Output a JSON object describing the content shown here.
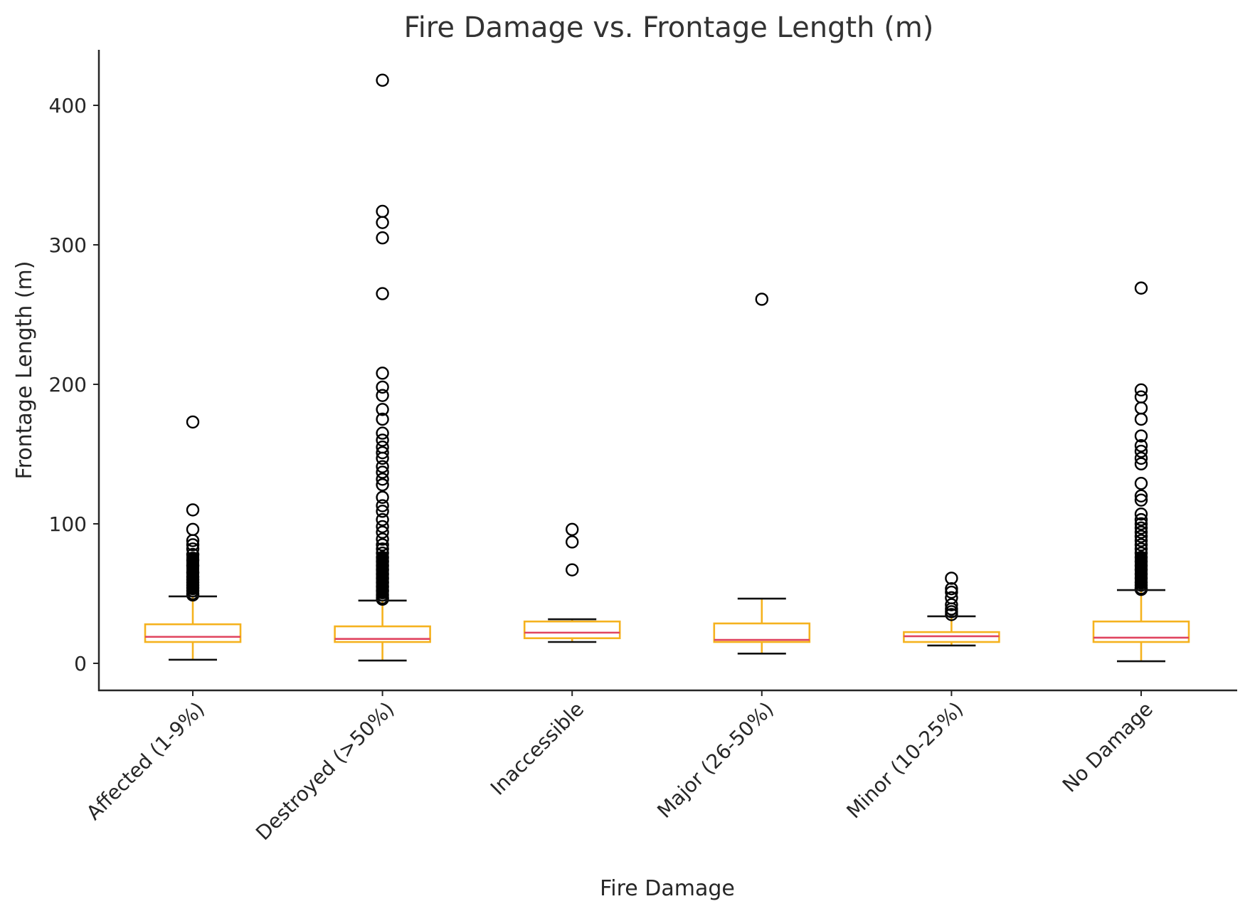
{
  "title": "Fire Damage vs. Frontage Length (m)",
  "xlabel": "Fire Damage",
  "ylabel": "Frontage Length (m)",
  "colors": {
    "box": "#F5B21E",
    "median": "#E0445F",
    "whisker_cap": "#111111",
    "flier": "#000000",
    "axis": "#262626"
  },
  "chart_data": {
    "type": "box",
    "title": "Fire Damage vs. Frontage Length (m)",
    "xlabel": "Fire Damage",
    "ylabel": "Frontage Length (m)",
    "ylim": [
      -20,
      440
    ],
    "yticks": [
      0,
      100,
      200,
      300,
      400
    ],
    "grid": false,
    "legend": null,
    "categories": [
      "Affected (1-9%)",
      "Destroyed (>50%)",
      "Inaccessible",
      "Major (26-50%)",
      "Minor (10-25%)",
      "No Damage"
    ],
    "series": [
      {
        "name": "Affected (1-9%)",
        "whisker_low": 2.6,
        "q1": 15.3,
        "median": 19,
        "q3": 28,
        "whisker_high": 48,
        "outliers": [
          173,
          110,
          96,
          88,
          85,
          82,
          78,
          74,
          70,
          65,
          62,
          60,
          58,
          56,
          54,
          52,
          50,
          49
        ]
      },
      {
        "name": "Destroyed (>50%)",
        "whisker_low": 2,
        "q1": 15.3,
        "median": 17.5,
        "q3": 26.5,
        "whisker_high": 45,
        "outliers": [
          418,
          324,
          316,
          305,
          265,
          208,
          198,
          192,
          182,
          175,
          165,
          160,
          155,
          151,
          147,
          141,
          137,
          132,
          128,
          119,
          113,
          109,
          103,
          98,
          94,
          89,
          85,
          82,
          79,
          76,
          73,
          70,
          67,
          64,
          61,
          58,
          55,
          52,
          49,
          47,
          46
        ]
      },
      {
        "name": "Inaccessible",
        "whisker_low": 15.3,
        "q1": 18,
        "median": 22,
        "q3": 30,
        "whisker_high": 31.6,
        "outliers": [
          96,
          87,
          67
        ]
      },
      {
        "name": "Major (26-50%)",
        "whisker_low": 7,
        "q1": 15.3,
        "median": 16.8,
        "q3": 28.6,
        "whisker_high": 46.4,
        "outliers": [
          261
        ]
      },
      {
        "name": "Minor (10-25%)",
        "whisker_low": 12.8,
        "q1": 15.3,
        "median": 19.4,
        "q3": 22.4,
        "whisker_high": 33.7,
        "outliers": [
          61,
          53.5,
          51,
          47,
          42,
          39,
          37,
          35
        ]
      },
      {
        "name": "No Damage",
        "whisker_low": 1.5,
        "q1": 15.3,
        "median": 18.4,
        "q3": 30,
        "whisker_high": 52.5,
        "outliers": [
          269,
          196,
          191,
          183,
          175,
          163,
          156,
          152,
          147,
          143,
          129,
          120,
          117,
          107,
          103,
          100,
          97,
          94,
          91,
          88,
          85,
          82,
          79,
          76,
          73,
          70,
          67,
          64,
          61,
          58,
          56,
          54,
          53
        ]
      }
    ]
  }
}
